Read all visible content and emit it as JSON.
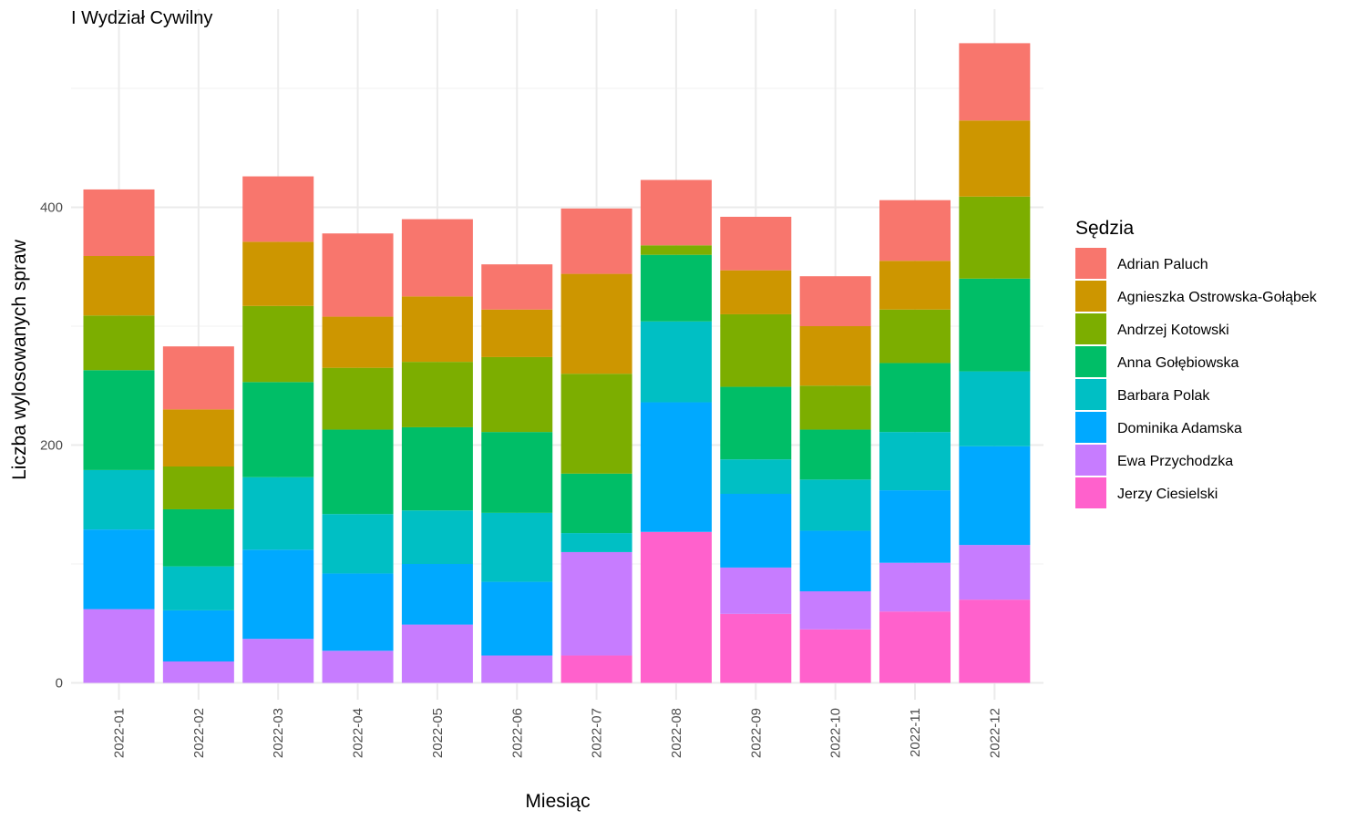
{
  "chart_data": {
    "type": "bar",
    "stacked": true,
    "title": "I Wydział Cywilny",
    "xlabel": "Miesiąc",
    "ylabel": "Liczba wylosowanych spraw",
    "ylim": [
      -20,
      540
    ],
    "yticks": [
      0,
      200,
      400
    ],
    "grid": true,
    "legend_position": "right",
    "legend_title": "Sędzia",
    "categories": [
      "2022-01",
      "2022-02",
      "2022-03",
      "2022-04",
      "2022-05",
      "2022-06",
      "2022-07",
      "2022-08",
      "2022-09",
      "2022-10",
      "2022-11",
      "2022-12"
    ],
    "series": [
      {
        "name": "Jerzy Ciesielski",
        "color": "#FF61CC",
        "values": [
          0,
          0,
          0,
          0,
          0,
          0,
          23,
          127,
          58,
          45,
          60,
          70
        ]
      },
      {
        "name": "Ewa Przychodzka",
        "color": "#C77CFF",
        "values": [
          62,
          18,
          37,
          27,
          49,
          23,
          87,
          0,
          39,
          32,
          41,
          46
        ]
      },
      {
        "name": "Dominika Adamska",
        "color": "#00A9FF",
        "values": [
          67,
          43,
          75,
          65,
          51,
          62,
          0,
          109,
          62,
          51,
          61,
          83
        ]
      },
      {
        "name": "Barbara Polak",
        "color": "#00BFC4",
        "values": [
          50,
          37,
          61,
          50,
          45,
          58,
          16,
          68,
          29,
          43,
          49,
          63
        ]
      },
      {
        "name": "Anna Gołębiowska",
        "color": "#00BE67",
        "values": [
          84,
          48,
          80,
          71,
          70,
          68,
          50,
          56,
          61,
          42,
          58,
          78
        ]
      },
      {
        "name": "Andrzej Kotowski",
        "color": "#7CAE00",
        "values": [
          46,
          36,
          64,
          52,
          55,
          63,
          84,
          8,
          61,
          37,
          45,
          69
        ]
      },
      {
        "name": "Agnieszka Ostrowska-Gołąbek",
        "color": "#CD9600",
        "values": [
          50,
          48,
          54,
          43,
          55,
          40,
          84,
          0,
          37,
          50,
          41,
          64
        ]
      },
      {
        "name": "Adrian Paluch",
        "color": "#F8766D",
        "values": [
          56,
          53,
          55,
          70,
          65,
          38,
          55,
          55,
          45,
          42,
          51,
          65
        ]
      }
    ],
    "legend_order": [
      "Adrian Paluch",
      "Agnieszka Ostrowska-Gołąbek",
      "Andrzej Kotowski",
      "Anna Gołębiowska",
      "Barbara Polak",
      "Dominika Adamska",
      "Ewa Przychodzka",
      "Jerzy Ciesielski"
    ]
  }
}
